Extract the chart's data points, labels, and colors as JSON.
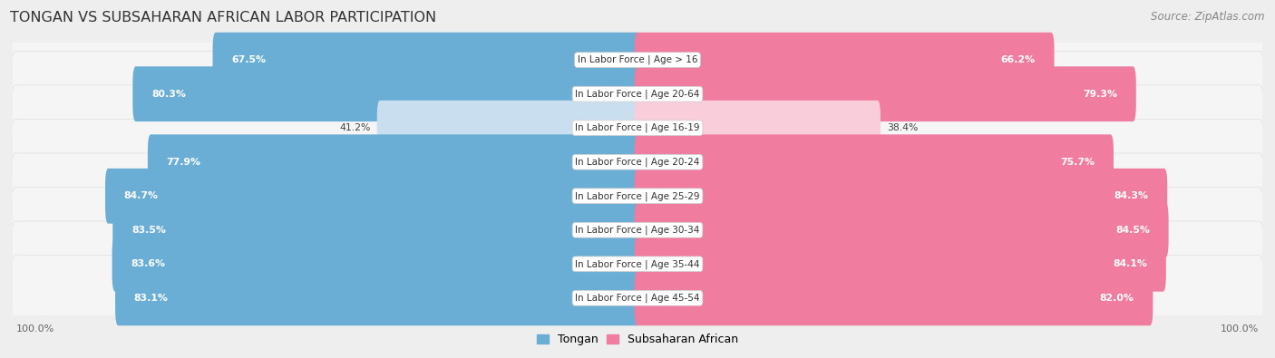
{
  "title": "TONGAN VS SUBSAHARAN AFRICAN LABOR PARTICIPATION",
  "source": "Source: ZipAtlas.com",
  "categories": [
    "In Labor Force | Age > 16",
    "In Labor Force | Age 20-64",
    "In Labor Force | Age 16-19",
    "In Labor Force | Age 20-24",
    "In Labor Force | Age 25-29",
    "In Labor Force | Age 30-34",
    "In Labor Force | Age 35-44",
    "In Labor Force | Age 45-54"
  ],
  "tongan": [
    67.5,
    80.3,
    41.2,
    77.9,
    84.7,
    83.5,
    83.6,
    83.1
  ],
  "subsaharan": [
    66.2,
    79.3,
    38.4,
    75.7,
    84.3,
    84.5,
    84.1,
    82.0
  ],
  "tongan_color": "#6aaed6",
  "subsaharan_color": "#f07ca0",
  "tongan_light_color": "#c9dff0",
  "subsaharan_light_color": "#f9cdd9",
  "bg_color": "#eeeeee",
  "row_bg_color": "#f5f5f5",
  "row_bg_edge": "#dddddd",
  "max_val": 100.0,
  "legend_labels": [
    "Tongan",
    "Subsaharan African"
  ]
}
